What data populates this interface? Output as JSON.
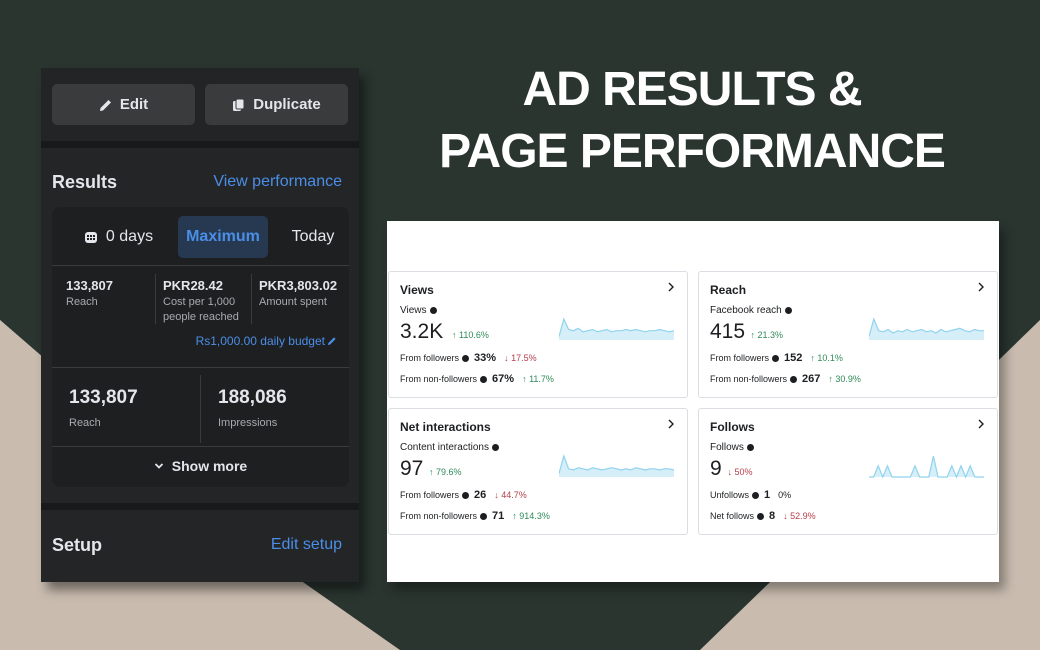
{
  "headline": {
    "line1": "AD RESULTS &",
    "line2": "PAGE PERFORMANCE"
  },
  "colors": {
    "accent_blue": "#4b8ee8",
    "positive": "#2e8b57",
    "negative": "#b43f4a",
    "spark": "#8fd3ee"
  },
  "ad_panel": {
    "edit_label": "Edit",
    "duplicate_label": "Duplicate",
    "results_title": "Results",
    "view_performance": "View performance",
    "date_range": {
      "days_label": "0 days",
      "maximum_label": "Maximum",
      "today_label": "Today"
    },
    "metrics": [
      {
        "value": "133,807",
        "label": "Reach"
      },
      {
        "value": "PKR28.42",
        "label": "Cost per 1,000 people reached"
      },
      {
        "value": "PKR3,803.02",
        "label": "Amount spent"
      }
    ],
    "daily_budget": "Rs1,000.00 daily budget",
    "totals": [
      {
        "value": "133,807",
        "label": "Reach"
      },
      {
        "value": "188,086",
        "label": "Impressions"
      }
    ],
    "show_more": "Show more",
    "setup_title": "Setup",
    "edit_setup": "Edit setup"
  },
  "dashboard": {
    "cards": [
      {
        "title": "Views",
        "subtitle": "Views",
        "value": "3.2K",
        "delta": {
          "dir": "up",
          "text": "110.6%"
        },
        "rows": [
          {
            "label": "From followers",
            "value": "33%",
            "dir": "down",
            "delta": "17.5%"
          },
          {
            "label": "From non-followers",
            "value": "67%",
            "dir": "up",
            "delta": "11.7%"
          }
        ],
        "spark": [
          3,
          18,
          9,
          8,
          10,
          7,
          8,
          9,
          7,
          8,
          9,
          7,
          8,
          8,
          9,
          8,
          9,
          8,
          7,
          8,
          8,
          9,
          8,
          7,
          8
        ]
      },
      {
        "title": "Reach",
        "subtitle": "Facebook reach",
        "value": "415",
        "delta": {
          "dir": "up",
          "text": "21.3%"
        },
        "rows": [
          {
            "label": "From followers",
            "value": "152",
            "dir": "up",
            "delta": "10.1%"
          },
          {
            "label": "From non-followers",
            "value": "267",
            "dir": "up",
            "delta": "30.9%"
          }
        ],
        "spark": [
          3,
          18,
          8,
          7,
          9,
          6,
          8,
          7,
          9,
          7,
          8,
          9,
          7,
          8,
          6,
          9,
          7,
          8,
          9,
          10,
          8,
          7,
          9,
          8,
          8
        ]
      },
      {
        "title": "Net interactions",
        "subtitle": "Content interactions",
        "value": "97",
        "delta": {
          "dir": "up",
          "text": "79.6%"
        },
        "rows": [
          {
            "label": "From followers",
            "value": "26",
            "dir": "down",
            "delta": "44.7%"
          },
          {
            "label": "From non-followers",
            "value": "71",
            "dir": "up",
            "delta": "914.3%"
          }
        ],
        "spark": [
          3,
          18,
          7,
          6,
          8,
          7,
          6,
          8,
          7,
          6,
          7,
          8,
          7,
          6,
          7,
          6,
          8,
          7,
          6,
          7,
          7,
          6,
          7,
          7,
          6
        ]
      },
      {
        "title": "Follows",
        "subtitle": "Follows",
        "value": "9",
        "delta": {
          "dir": "down",
          "text": "50%"
        },
        "rows": [
          {
            "label": "Unfollows",
            "value": "1",
            "dir": "none",
            "delta": "0%"
          },
          {
            "label": "Net follows",
            "value": "8",
            "dir": "down",
            "delta": "52.9%"
          }
        ],
        "spark": [
          0,
          0,
          8,
          0,
          8,
          0,
          0,
          0,
          0,
          0,
          8,
          0,
          0,
          0,
          15,
          0,
          0,
          0,
          8,
          0,
          8,
          0,
          8,
          0,
          0,
          0
        ]
      }
    ]
  }
}
